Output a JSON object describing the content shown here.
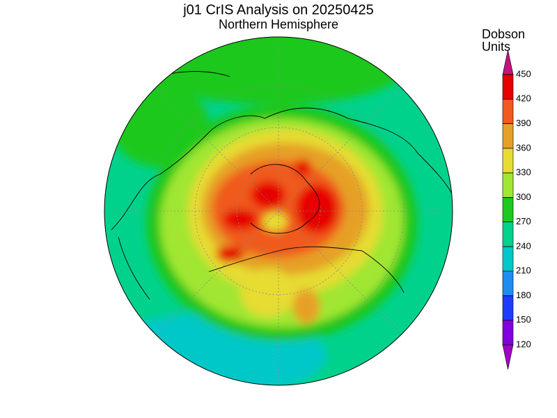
{
  "header": {
    "title": "j01 CrIS Analysis on 20250425",
    "subtitle": "Northern Hemisphere"
  },
  "colorbar": {
    "label_lines": [
      "Dobson",
      "Units"
    ],
    "ticks": [
      120,
      150,
      180,
      210,
      240,
      270,
      300,
      330,
      360,
      390,
      420,
      450
    ],
    "colors": [
      "#a000c8",
      "#8200dc",
      "#1e3cff",
      "#1e8cf0",
      "#00c8c8",
      "#00d28c",
      "#1ec81e",
      "#a0e632",
      "#e6dc32",
      "#e6a028",
      "#f05a1e",
      "#e60000",
      "#c0147c"
    ]
  }
}
